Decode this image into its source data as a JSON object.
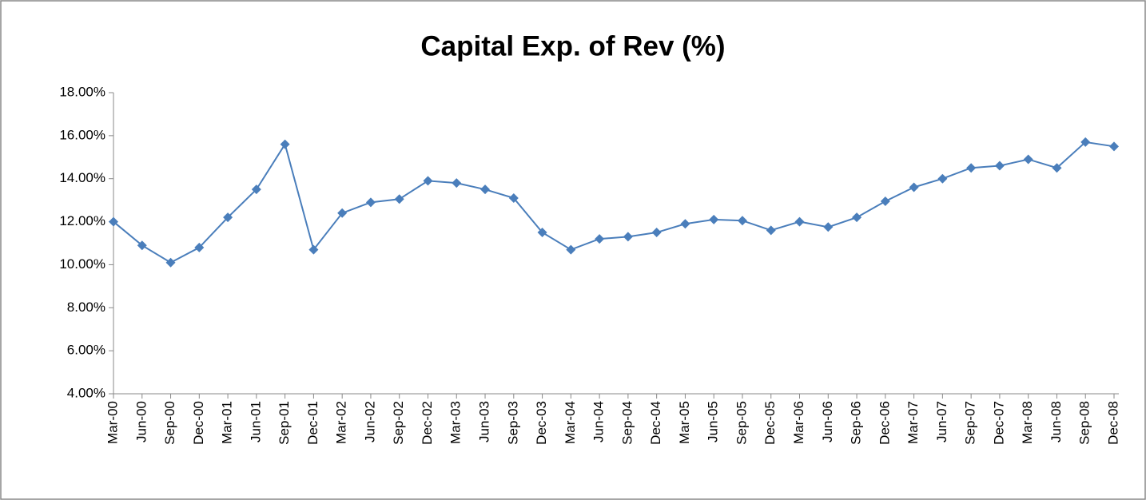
{
  "chart_data": {
    "type": "line",
    "title": "Capital Exp. of Rev (%)",
    "categories": [
      "Mar-00",
      "Jun-00",
      "Sep-00",
      "Dec-00",
      "Mar-01",
      "Jun-01",
      "Sep-01",
      "Dec-01",
      "Mar-02",
      "Jun-02",
      "Sep-02",
      "Dec-02",
      "Mar-03",
      "Jun-03",
      "Sep-03",
      "Dec-03",
      "Mar-04",
      "Jun-04",
      "Sep-04",
      "Dec-04",
      "Mar-05",
      "Jun-05",
      "Sep-05",
      "Dec-05",
      "Mar-06",
      "Jun-06",
      "Sep-06",
      "Dec-06",
      "Mar-07",
      "Jun-07",
      "Sep-07",
      "Dec-07",
      "Mar-08",
      "Jun-08",
      "Sep-08",
      "Dec-08"
    ],
    "series": [
      {
        "color": "#4a7ebb",
        "values": [
          12.0,
          10.9,
          10.1,
          10.8,
          12.2,
          13.5,
          15.6,
          10.7,
          12.4,
          12.9,
          13.05,
          13.9,
          13.8,
          13.5,
          13.1,
          11.5,
          10.7,
          11.2,
          11.3,
          11.5,
          11.9,
          12.1,
          12.05,
          11.6,
          12.0,
          11.75,
          12.2,
          12.95,
          13.6,
          14.0,
          14.5,
          14.6,
          14.9,
          14.5,
          15.7,
          15.5
        ]
      }
    ],
    "ylim": [
      4,
      18
    ],
    "yticks": [
      {
        "value": 4,
        "label": "4.00%"
      },
      {
        "value": 6,
        "label": "6.00%"
      },
      {
        "value": 8,
        "label": "8.00%"
      },
      {
        "value": 10,
        "label": "10.00%"
      },
      {
        "value": 12,
        "label": "12.00%"
      },
      {
        "value": 14,
        "label": "14.00%"
      },
      {
        "value": 16,
        "label": "16.00%"
      },
      {
        "value": 18,
        "label": "18.00%"
      }
    ],
    "grid": false
  }
}
